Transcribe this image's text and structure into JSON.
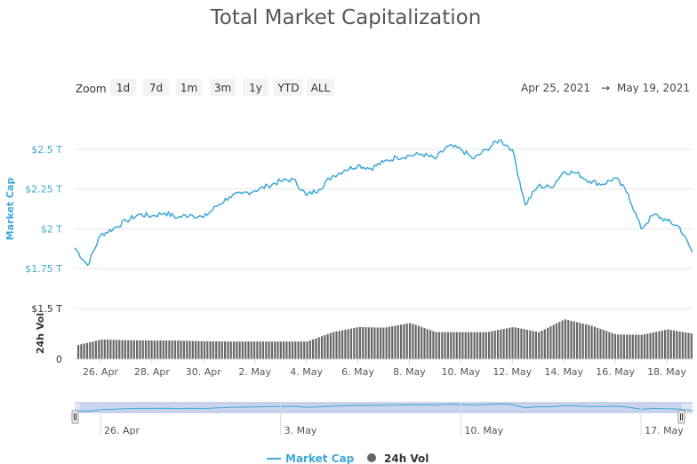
{
  "title": "Total Market Capitalization",
  "zoom": {
    "label": "Zoom",
    "buttons": [
      "1d",
      "7d",
      "1m",
      "3m",
      "1y",
      "YTD",
      "ALL"
    ]
  },
  "range": {
    "from": "Apr 25, 2021",
    "arrow": "→",
    "to": "May 19, 2021"
  },
  "legend": {
    "market_cap": "Market Cap",
    "volume": "24h Vol"
  },
  "colors": {
    "market_cap": "#3ea9d6",
    "volume": "#666666",
    "navigator_fill": "#c9d4ee"
  },
  "chart_data": {
    "type": "line",
    "title": "Total Market Capitalization",
    "x_start": "2021-04-25",
    "x_end": "2021-05-19",
    "x_ticks": [
      "26. Apr",
      "28. Apr",
      "30. Apr",
      "2. May",
      "4. May",
      "6. May",
      "8. May",
      "10. May",
      "12. May",
      "14. May",
      "16. May",
      "18. May"
    ],
    "navigator_ticks": [
      "26. Apr",
      "3. May",
      "10. May",
      "17. May"
    ],
    "series": [
      {
        "name": "Market Cap",
        "axis": "Market Cap",
        "unit": "T USD",
        "x": [
          "2021-04-25",
          "2021-04-25 12:00",
          "2021-04-26",
          "2021-04-26 12:00",
          "2021-04-27",
          "2021-04-27 12:00",
          "2021-04-28",
          "2021-04-28 12:00",
          "2021-04-29",
          "2021-04-29 12:00",
          "2021-04-30",
          "2021-04-30 12:00",
          "2021-05-01",
          "2021-05-01 12:00",
          "2021-05-02",
          "2021-05-02 12:00",
          "2021-05-03",
          "2021-05-03 12:00",
          "2021-05-04",
          "2021-05-04 12:00",
          "2021-05-05",
          "2021-05-05 12:00",
          "2021-05-06",
          "2021-05-06 12:00",
          "2021-05-07",
          "2021-05-07 12:00",
          "2021-05-08",
          "2021-05-08 12:00",
          "2021-05-09",
          "2021-05-09 12:00",
          "2021-05-10",
          "2021-05-10 12:00",
          "2021-05-11",
          "2021-05-11 12:00",
          "2021-05-12",
          "2021-05-12 12:00",
          "2021-05-13",
          "2021-05-13 12:00",
          "2021-05-14",
          "2021-05-14 12:00",
          "2021-05-15",
          "2021-05-15 12:00",
          "2021-05-16",
          "2021-05-16 12:00",
          "2021-05-17",
          "2021-05-17 12:00",
          "2021-05-18",
          "2021-05-18 12:00",
          "2021-05-19"
        ],
        "values": [
          1.88,
          1.77,
          1.96,
          2.0,
          2.05,
          2.09,
          2.08,
          2.1,
          2.07,
          2.09,
          2.07,
          2.14,
          2.2,
          2.22,
          2.24,
          2.27,
          2.3,
          2.31,
          2.21,
          2.25,
          2.33,
          2.37,
          2.4,
          2.38,
          2.42,
          2.45,
          2.46,
          2.47,
          2.44,
          2.52,
          2.5,
          2.44,
          2.5,
          2.56,
          2.5,
          2.15,
          2.27,
          2.26,
          2.36,
          2.35,
          2.3,
          2.28,
          2.32,
          2.22,
          2.0,
          2.09,
          2.05,
          2.01,
          1.85
        ]
      },
      {
        "name": "24h Vol",
        "axis": "24h Vol",
        "unit": "T USD",
        "x": [
          "2021-04-25",
          "2021-04-26",
          "2021-04-27",
          "2021-04-28",
          "2021-04-29",
          "2021-04-30",
          "2021-05-01",
          "2021-05-02",
          "2021-05-03",
          "2021-05-04",
          "2021-05-05",
          "2021-05-06",
          "2021-05-07",
          "2021-05-08",
          "2021-05-09",
          "2021-05-10",
          "2021-05-11",
          "2021-05-12",
          "2021-05-13",
          "2021-05-14",
          "2021-05-15",
          "2021-05-16",
          "2021-05-17",
          "2021-05-18",
          "2021-05-19"
        ],
        "values": [
          0.4,
          0.58,
          0.56,
          0.55,
          0.55,
          0.53,
          0.52,
          0.52,
          0.52,
          0.52,
          0.8,
          0.95,
          0.93,
          1.07,
          0.8,
          0.8,
          0.8,
          0.95,
          0.8,
          1.18,
          1.0,
          0.73,
          0.72,
          0.88,
          0.75
        ]
      }
    ],
    "y_axes": [
      {
        "name": "Market Cap",
        "ticks": [
          "$1.75 T",
          "$2 T",
          "$2.25 T",
          "$2.5 T"
        ],
        "tick_values": [
          1.75,
          2.0,
          2.25,
          2.5
        ],
        "range": [
          1.75,
          2.6
        ]
      },
      {
        "name": "24h Vol",
        "ticks": [
          "0",
          "$1.5 T"
        ],
        "tick_values": [
          0,
          1.5
        ],
        "range": [
          0,
          1.5
        ]
      }
    ],
    "grid": true,
    "legend_position": "bottom"
  }
}
